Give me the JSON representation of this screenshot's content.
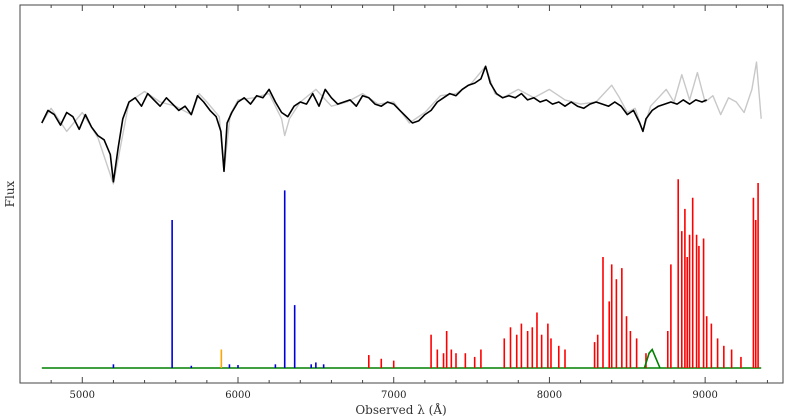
{
  "chart_data": {
    "type": "line",
    "title": "",
    "xlabel": "Observed λ (Å)",
    "ylabel": "Flux",
    "xlim": [
      4600,
      9500
    ],
    "x_ticks": [
      5000,
      6000,
      7000,
      8000,
      9000
    ],
    "tick_labels": [
      "5000",
      "6000",
      "7000",
      "8000",
      "9000"
    ],
    "y_ticks_labeled": false,
    "grid": false,
    "legend": "none",
    "colors": {
      "observed": "#c8c8c8",
      "model": "#000000",
      "sky_blue": "#0000dd",
      "sky_orange": "#ffa500",
      "sky_red": "#ff0000",
      "sky_green": "#008000"
    },
    "series": [
      {
        "role": "observed",
        "color_key": "observed",
        "points": [
          [
            4740,
            0.7
          ],
          [
            4800,
            0.77
          ],
          [
            4900,
            0.66
          ],
          [
            5000,
            0.75
          ],
          [
            5100,
            0.63
          ],
          [
            5200,
            0.41
          ],
          [
            5300,
            0.8
          ],
          [
            5400,
            0.85
          ],
          [
            5500,
            0.8
          ],
          [
            5600,
            0.78
          ],
          [
            5700,
            0.74
          ],
          [
            5750,
            0.84
          ],
          [
            5800,
            0.8
          ],
          [
            5880,
            0.73
          ],
          [
            5910,
            0.47
          ],
          [
            5950,
            0.74
          ],
          [
            6000,
            0.81
          ],
          [
            6100,
            0.82
          ],
          [
            6200,
            0.84
          ],
          [
            6280,
            0.72
          ],
          [
            6300,
            0.64
          ],
          [
            6330,
            0.72
          ],
          [
            6400,
            0.8
          ],
          [
            6500,
            0.86
          ],
          [
            6600,
            0.78
          ],
          [
            6700,
            0.8
          ],
          [
            6800,
            0.84
          ],
          [
            6900,
            0.79
          ],
          [
            7000,
            0.8
          ],
          [
            7100,
            0.7
          ],
          [
            7200,
            0.75
          ],
          [
            7300,
            0.83
          ],
          [
            7400,
            0.84
          ],
          [
            7500,
            0.89
          ],
          [
            7590,
            0.97
          ],
          [
            7650,
            0.84
          ],
          [
            7700,
            0.82
          ],
          [
            7800,
            0.86
          ],
          [
            7900,
            0.82
          ],
          [
            8000,
            0.86
          ],
          [
            8100,
            0.81
          ],
          [
            8200,
            0.79
          ],
          [
            8300,
            0.8
          ],
          [
            8400,
            0.88
          ],
          [
            8450,
            0.82
          ],
          [
            8500,
            0.75
          ],
          [
            8550,
            0.77
          ],
          [
            8600,
            0.66
          ],
          [
            8650,
            0.78
          ],
          [
            8700,
            0.82
          ],
          [
            8750,
            0.86
          ],
          [
            8800,
            0.8
          ],
          [
            8850,
            0.93
          ],
          [
            8900,
            0.81
          ],
          [
            8950,
            0.94
          ],
          [
            9000,
            0.8
          ],
          [
            9050,
            0.83
          ],
          [
            9100,
            0.74
          ],
          [
            9150,
            0.82
          ],
          [
            9200,
            0.8
          ],
          [
            9250,
            0.75
          ],
          [
            9300,
            0.86
          ],
          [
            9330,
            0.99
          ],
          [
            9360,
            0.72
          ]
        ]
      },
      {
        "role": "model",
        "color_key": "model",
        "points": [
          [
            4740,
            0.7
          ],
          [
            4780,
            0.76
          ],
          [
            4820,
            0.74
          ],
          [
            4860,
            0.69
          ],
          [
            4900,
            0.75
          ],
          [
            4940,
            0.73
          ],
          [
            4980,
            0.67
          ],
          [
            5020,
            0.74
          ],
          [
            5060,
            0.68
          ],
          [
            5100,
            0.64
          ],
          [
            5140,
            0.62
          ],
          [
            5180,
            0.55
          ],
          [
            5200,
            0.42
          ],
          [
            5230,
            0.58
          ],
          [
            5260,
            0.72
          ],
          [
            5300,
            0.8
          ],
          [
            5340,
            0.82
          ],
          [
            5380,
            0.78
          ],
          [
            5420,
            0.84
          ],
          [
            5460,
            0.81
          ],
          [
            5500,
            0.78
          ],
          [
            5540,
            0.82
          ],
          [
            5580,
            0.79
          ],
          [
            5620,
            0.76
          ],
          [
            5660,
            0.78
          ],
          [
            5700,
            0.74
          ],
          [
            5740,
            0.83
          ],
          [
            5780,
            0.8
          ],
          [
            5820,
            0.76
          ],
          [
            5860,
            0.73
          ],
          [
            5890,
            0.66
          ],
          [
            5910,
            0.47
          ],
          [
            5930,
            0.7
          ],
          [
            5960,
            0.75
          ],
          [
            6000,
            0.8
          ],
          [
            6040,
            0.82
          ],
          [
            6080,
            0.79
          ],
          [
            6120,
            0.83
          ],
          [
            6160,
            0.82
          ],
          [
            6200,
            0.86
          ],
          [
            6240,
            0.8
          ],
          [
            6280,
            0.75
          ],
          [
            6320,
            0.73
          ],
          [
            6360,
            0.78
          ],
          [
            6400,
            0.8
          ],
          [
            6440,
            0.79
          ],
          [
            6480,
            0.84
          ],
          [
            6520,
            0.78
          ],
          [
            6560,
            0.86
          ],
          [
            6600,
            0.82
          ],
          [
            6640,
            0.79
          ],
          [
            6680,
            0.8
          ],
          [
            6720,
            0.81
          ],
          [
            6760,
            0.78
          ],
          [
            6800,
            0.83
          ],
          [
            6840,
            0.82
          ],
          [
            6880,
            0.79
          ],
          [
            6920,
            0.78
          ],
          [
            6960,
            0.8
          ],
          [
            7000,
            0.79
          ],
          [
            7040,
            0.76
          ],
          [
            7080,
            0.73
          ],
          [
            7120,
            0.7
          ],
          [
            7160,
            0.71
          ],
          [
            7200,
            0.74
          ],
          [
            7240,
            0.76
          ],
          [
            7280,
            0.8
          ],
          [
            7320,
            0.82
          ],
          [
            7360,
            0.84
          ],
          [
            7400,
            0.83
          ],
          [
            7440,
            0.86
          ],
          [
            7480,
            0.88
          ],
          [
            7520,
            0.89
          ],
          [
            7560,
            0.91
          ],
          [
            7590,
            0.97
          ],
          [
            7620,
            0.89
          ],
          [
            7660,
            0.84
          ],
          [
            7700,
            0.82
          ],
          [
            7740,
            0.83
          ],
          [
            7780,
            0.82
          ],
          [
            7820,
            0.84
          ],
          [
            7860,
            0.81
          ],
          [
            7900,
            0.82
          ],
          [
            7940,
            0.8
          ],
          [
            7980,
            0.81
          ],
          [
            8020,
            0.79
          ],
          [
            8060,
            0.8
          ],
          [
            8100,
            0.78
          ],
          [
            8140,
            0.8
          ],
          [
            8180,
            0.78
          ],
          [
            8220,
            0.77
          ],
          [
            8260,
            0.79
          ],
          [
            8300,
            0.8
          ],
          [
            8340,
            0.79
          ],
          [
            8380,
            0.78
          ],
          [
            8420,
            0.8
          ],
          [
            8460,
            0.78
          ],
          [
            8500,
            0.74
          ],
          [
            8540,
            0.76
          ],
          [
            8580,
            0.7
          ],
          [
            8600,
            0.66
          ],
          [
            8620,
            0.72
          ],
          [
            8660,
            0.76
          ],
          [
            8700,
            0.78
          ],
          [
            8740,
            0.79
          ],
          [
            8780,
            0.8
          ],
          [
            8820,
            0.79
          ],
          [
            8860,
            0.81
          ],
          [
            8900,
            0.79
          ],
          [
            8940,
            0.81
          ],
          [
            8980,
            0.8
          ],
          [
            9010,
            0.81
          ]
        ]
      }
    ],
    "sky_spectrum": {
      "baseline": 0.0,
      "continuum_color_key": "sky_green",
      "continuum_range": [
        4740,
        9360
      ],
      "green_bumps": [
        [
          8640,
          0.04
        ],
        [
          8660,
          0.05
        ],
        [
          8680,
          0.03
        ]
      ],
      "lines": [
        [
          5200,
          0.01,
          "sky_blue"
        ],
        [
          5577,
          0.4,
          "sky_blue"
        ],
        [
          5700,
          0.006,
          "sky_blue"
        ],
        [
          5893,
          0.05,
          "sky_orange"
        ],
        [
          5945,
          0.01,
          "sky_blue"
        ],
        [
          6000,
          0.008,
          "sky_blue"
        ],
        [
          6240,
          0.01,
          "sky_blue"
        ],
        [
          6300,
          0.48,
          "sky_blue"
        ],
        [
          6364,
          0.17,
          "sky_blue"
        ],
        [
          6470,
          0.01,
          "sky_blue"
        ],
        [
          6500,
          0.015,
          "sky_blue"
        ],
        [
          6550,
          0.01,
          "sky_blue"
        ],
        [
          6840,
          0.035,
          "sky_red"
        ],
        [
          6920,
          0.025,
          "sky_red"
        ],
        [
          7000,
          0.02,
          "sky_red"
        ],
        [
          7240,
          0.09,
          "sky_red"
        ],
        [
          7280,
          0.05,
          "sky_red"
        ],
        [
          7320,
          0.04,
          "sky_red"
        ],
        [
          7340,
          0.1,
          "sky_red"
        ],
        [
          7370,
          0.05,
          "sky_red"
        ],
        [
          7400,
          0.04,
          "sky_red"
        ],
        [
          7460,
          0.04,
          "sky_red"
        ],
        [
          7520,
          0.03,
          "sky_red"
        ],
        [
          7560,
          0.05,
          "sky_red"
        ],
        [
          7710,
          0.08,
          "sky_red"
        ],
        [
          7750,
          0.11,
          "sky_red"
        ],
        [
          7790,
          0.09,
          "sky_red"
        ],
        [
          7820,
          0.12,
          "sky_red"
        ],
        [
          7860,
          0.1,
          "sky_red"
        ],
        [
          7890,
          0.11,
          "sky_red"
        ],
        [
          7920,
          0.15,
          "sky_red"
        ],
        [
          7950,
          0.09,
          "sky_red"
        ],
        [
          7990,
          0.12,
          "sky_red"
        ],
        [
          8010,
          0.08,
          "sky_red"
        ],
        [
          8060,
          0.06,
          "sky_red"
        ],
        [
          8100,
          0.05,
          "sky_red"
        ],
        [
          8290,
          0.07,
          "sky_red"
        ],
        [
          8310,
          0.09,
          "sky_red"
        ],
        [
          8344,
          0.3,
          "sky_red"
        ],
        [
          8384,
          0.18,
          "sky_red"
        ],
        [
          8400,
          0.28,
          "sky_red"
        ],
        [
          8430,
          0.24,
          "sky_red"
        ],
        [
          8465,
          0.27,
          "sky_red"
        ],
        [
          8495,
          0.14,
          "sky_red"
        ],
        [
          8520,
          0.1,
          "sky_red"
        ],
        [
          8560,
          0.08,
          "sky_red"
        ],
        [
          8620,
          0.04,
          "sky_red"
        ],
        [
          8760,
          0.1,
          "sky_red"
        ],
        [
          8780,
          0.28,
          "sky_red"
        ],
        [
          8827,
          0.51,
          "sky_red"
        ],
        [
          8850,
          0.37,
          "sky_red"
        ],
        [
          8870,
          0.43,
          "sky_red"
        ],
        [
          8885,
          0.3,
          "sky_red"
        ],
        [
          8900,
          0.36,
          "sky_red"
        ],
        [
          8920,
          0.46,
          "sky_red"
        ],
        [
          8945,
          0.36,
          "sky_red"
        ],
        [
          8960,
          0.33,
          "sky_red"
        ],
        [
          8990,
          0.35,
          "sky_red"
        ],
        [
          9010,
          0.14,
          "sky_red"
        ],
        [
          9040,
          0.12,
          "sky_red"
        ],
        [
          9080,
          0.08,
          "sky_red"
        ],
        [
          9120,
          0.06,
          "sky_red"
        ],
        [
          9170,
          0.05,
          "sky_red"
        ],
        [
          9230,
          0.03,
          "sky_red"
        ],
        [
          9310,
          0.46,
          "sky_red"
        ],
        [
          9325,
          0.4,
          "sky_red"
        ],
        [
          9340,
          0.5,
          "sky_red"
        ]
      ]
    }
  }
}
